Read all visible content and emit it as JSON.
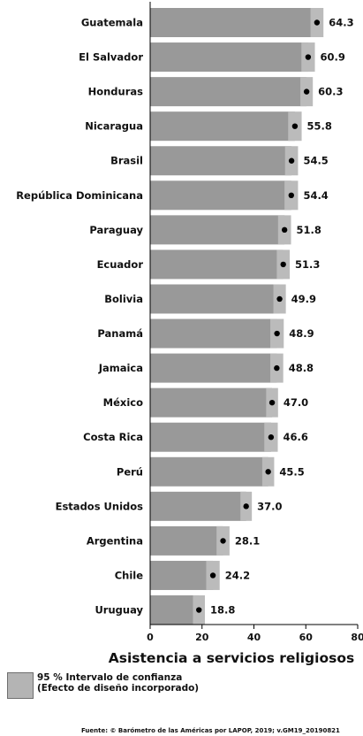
{
  "chart_data": {
    "type": "bar",
    "orientation": "horizontal",
    "categories": [
      "Guatemala",
      "El Salvador",
      "Honduras",
      "Nicaragua",
      "Brasil",
      "República Dominicana",
      "Paraguay",
      "Ecuador",
      "Bolivia",
      "Panamá",
      "Jamaica",
      "México",
      "Costa Rica",
      "Perú",
      "Estados Unidos",
      "Argentina",
      "Chile",
      "Uruguay"
    ],
    "values": [
      64.3,
      60.9,
      60.3,
      55.8,
      54.5,
      54.4,
      51.8,
      51.3,
      49.9,
      48.9,
      48.8,
      47.0,
      46.6,
      45.5,
      37.0,
      28.1,
      24.2,
      18.8
    ],
    "value_labels": [
      "64.3",
      "60.9",
      "60.3",
      "55.8",
      "54.5",
      "54.4",
      "51.8",
      "51.3",
      "49.9",
      "48.9",
      "48.8",
      "47.0",
      "46.6",
      "45.5",
      "37.0",
      "28.1",
      "24.2",
      "18.8"
    ],
    "ci_lower": [
      61.8,
      58.3,
      57.9,
      53.2,
      52.0,
      51.8,
      49.3,
      48.8,
      47.5,
      46.3,
      46.3,
      44.7,
      44.0,
      43.2,
      34.8,
      25.6,
      21.6,
      16.5
    ],
    "ci_upper": [
      66.8,
      63.5,
      62.7,
      58.4,
      57.0,
      57.0,
      54.3,
      53.8,
      52.3,
      51.5,
      51.3,
      49.3,
      49.2,
      47.8,
      39.2,
      30.6,
      26.8,
      21.1
    ],
    "xlabel": "Asistencia a servicios religiosos",
    "xlim": [
      0,
      80
    ],
    "xticks": [
      "0",
      "20",
      "40",
      "60",
      "80"
    ],
    "grid": false,
    "bar_color": "#999999",
    "ci_color": "#bbbbbb",
    "legend": {
      "label": "95 % Intervalo de confianza\n(Efecto de diseño incorporado)",
      "placement": "bottom-left"
    }
  },
  "source": "Fuente: © Barómetro de las Américas por LAPOP, 2019; v.GM19_20190821"
}
